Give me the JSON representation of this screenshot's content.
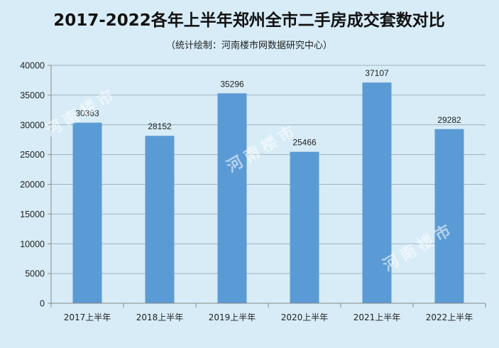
{
  "chart_data": {
    "type": "bar",
    "title": "2017-2022各年上半年郑州全市二手房成交套数对比",
    "subtitle": "（统计绘制：河南楼市网数据研究中心）",
    "categories": [
      "2017上半年",
      "2018上半年",
      "2019上半年",
      "2020上半年",
      "2021上半年",
      "2022上半年"
    ],
    "values": [
      30363,
      28152,
      35296,
      25466,
      37107,
      29282
    ],
    "yticks": [
      0,
      5000,
      10000,
      15000,
      20000,
      25000,
      30000,
      35000,
      40000
    ],
    "ylim": [
      0,
      40000
    ],
    "grid": true,
    "bar_color": "#5b9bd5",
    "watermark": "河南楼市"
  },
  "colors": {
    "background": "#d7ecf7",
    "gridline": "#9fb0c0",
    "axis": "#8a8a8a"
  }
}
